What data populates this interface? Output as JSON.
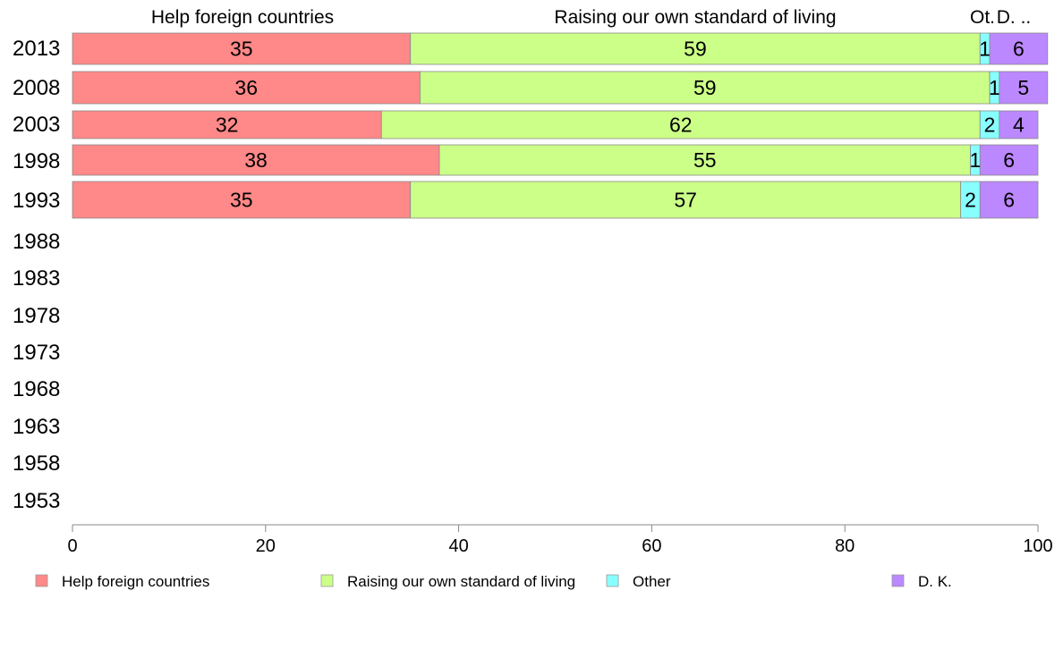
{
  "chart_data": {
    "type": "bar",
    "orientation": "horizontal",
    "stacked": true,
    "title": "",
    "xlabel": "",
    "ylabel": "",
    "xlim": [
      0,
      100
    ],
    "x_ticks": [
      "0",
      "20",
      "40",
      "60",
      "80",
      "100"
    ],
    "categories": [
      "2013",
      "2008",
      "2003",
      "1998",
      "1993",
      "1988",
      "1983",
      "1978",
      "1973",
      "1968",
      "1963",
      "1958",
      "1953"
    ],
    "series": [
      {
        "name": "Help foreign countries",
        "color": "#ff8888",
        "values": [
          35,
          36,
          32,
          38,
          35,
          null,
          null,
          null,
          null,
          null,
          null,
          null,
          null
        ]
      },
      {
        "name": "Raising our own standard of living",
        "color": "#ccff88",
        "values": [
          59,
          59,
          62,
          55,
          57,
          null,
          null,
          null,
          null,
          null,
          null,
          null,
          null
        ]
      },
      {
        "name": "Other",
        "color": "#88ffff",
        "values": [
          1,
          1,
          2,
          1,
          2,
          null,
          null,
          null,
          null,
          null,
          null,
          null,
          null
        ]
      },
      {
        "name": "D. K.",
        "color": "#bb88ff",
        "values": [
          6,
          5,
          4,
          6,
          6,
          null,
          null,
          null,
          null,
          null,
          null,
          null,
          null
        ]
      }
    ],
    "top_labels": [
      "Help foreign countries",
      "Raising our own standard of living",
      "Ot.",
      "D. .."
    ],
    "grid": false,
    "legend_position": "bottom"
  }
}
